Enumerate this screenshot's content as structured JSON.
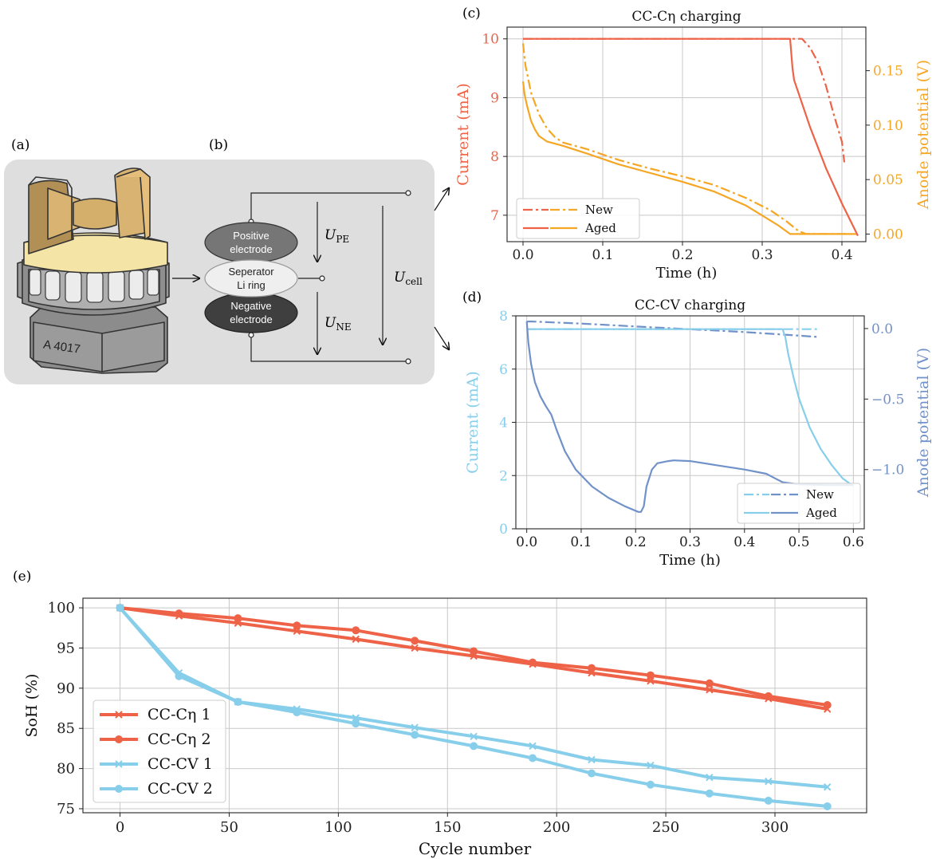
{
  "panels": {
    "a": {
      "label": "(a)",
      "cell_marking": "A 4017"
    },
    "b": {
      "label": "(b)",
      "positive": "Positive\nelectrode",
      "separator": "Seperator\nLi ring",
      "negative": "Negative\nelectrode",
      "u_pe": "U",
      "u_pe_sub": "PE",
      "u_ne": "U",
      "u_ne_sub": "NE",
      "u_cell": "U",
      "u_cell_sub": "cell"
    },
    "c": {
      "label": "(c)"
    },
    "d": {
      "label": "(d)"
    },
    "e": {
      "label": "(e)"
    }
  },
  "colors": {
    "red": "#EE6347",
    "orange": "#F5A623",
    "lightblue": "#87CEEB",
    "steelblue": "#7191C9"
  },
  "chart_data": [
    {
      "id": "c",
      "type": "line",
      "title": "CC-Cη charging",
      "xlabel": "Time (h)",
      "ylabel_left": "Current (mA)",
      "ylabel_right": "Anode potential (V)",
      "xlim": [
        -0.02,
        0.43
      ],
      "ylim_left": [
        6.55,
        10.2
      ],
      "ylim_right": [
        -0.007,
        0.19
      ],
      "xticks": [
        0.0,
        0.1,
        0.2,
        0.3,
        0.4
      ],
      "yticks_left": [
        7,
        8,
        9,
        10
      ],
      "yticks_right": [
        0.0,
        0.05,
        0.1,
        0.15
      ],
      "grid": true,
      "legend": "lower-left",
      "legend_labels": [
        "New",
        "Aged"
      ],
      "series": [
        {
          "name": "New",
          "axis": "left",
          "style": "dashdot",
          "color": "#EE6347",
          "x": [
            0,
            0.35,
            0.36,
            0.37,
            0.38,
            0.39,
            0.4,
            0.403
          ],
          "y": [
            10,
            10,
            9.85,
            9.6,
            9.2,
            8.7,
            8.25,
            7.9
          ]
        },
        {
          "name": "New",
          "axis": "right",
          "style": "dashdot",
          "color": "#F5A623",
          "x": [
            0,
            0.003,
            0.01,
            0.02,
            0.03,
            0.04,
            0.05,
            0.08,
            0.12,
            0.16,
            0.2,
            0.24,
            0.28,
            0.31,
            0.33,
            0.345,
            0.355,
            0.38,
            0.405
          ],
          "y": [
            0.175,
            0.155,
            0.13,
            0.11,
            0.097,
            0.089,
            0.084,
            0.078,
            0.068,
            0.06,
            0.053,
            0.045,
            0.033,
            0.022,
            0.012,
            0.003,
            0.0,
            0.0,
            0.0
          ]
        },
        {
          "name": "Aged",
          "axis": "left",
          "style": "solid",
          "color": "#EE6347",
          "x": [
            0,
            0.335,
            0.338,
            0.34,
            0.36,
            0.38,
            0.4,
            0.42
          ],
          "y": [
            10,
            10,
            9.5,
            9.3,
            8.5,
            7.8,
            7.2,
            6.65
          ]
        },
        {
          "name": "Aged",
          "axis": "right",
          "style": "solid",
          "color": "#F5A623",
          "x": [
            0,
            0.002,
            0.005,
            0.01,
            0.015,
            0.02,
            0.03,
            0.04,
            0.05,
            0.08,
            0.12,
            0.16,
            0.2,
            0.24,
            0.28,
            0.3,
            0.32,
            0.335,
            0.36,
            0.39,
            0.418
          ],
          "y": [
            0.14,
            0.128,
            0.118,
            0.104,
            0.096,
            0.09,
            0.085,
            0.083,
            0.081,
            0.074,
            0.064,
            0.056,
            0.048,
            0.039,
            0.026,
            0.017,
            0.008,
            0.0,
            0.0,
            0.0,
            0.0
          ]
        }
      ]
    },
    {
      "id": "d",
      "type": "line",
      "title": "CC-CV charging",
      "xlabel": "Time (h)",
      "ylabel_left": "Current (mA)",
      "ylabel_right": "Anode potential (V)",
      "xlim": [
        -0.02,
        0.62
      ],
      "ylim_left": [
        0,
        8
      ],
      "ylim_right": [
        -1.42,
        0.09
      ],
      "xticks": [
        0.0,
        0.1,
        0.2,
        0.3,
        0.4,
        0.5,
        0.6
      ],
      "yticks_left": [
        0,
        2,
        4,
        6,
        8
      ],
      "yticks_right": [
        0.0,
        -0.5,
        -1.0
      ],
      "grid": true,
      "legend": "lower-right",
      "legend_labels": [
        "New",
        "Aged"
      ],
      "series": [
        {
          "name": "New",
          "axis": "left",
          "style": "dashdot",
          "color": "#87CEEB",
          "x": [
            0,
            0.535
          ],
          "y": [
            7.5,
            7.5
          ]
        },
        {
          "name": "New",
          "axis": "right",
          "style": "dashdot",
          "color": "#7191C9",
          "x": [
            0,
            0.01,
            0.1,
            0.2,
            0.3,
            0.4,
            0.5,
            0.535
          ],
          "y": [
            0.05,
            0.05,
            0.035,
            0.015,
            -0.005,
            -0.025,
            -0.05,
            -0.06
          ]
        },
        {
          "name": "Aged",
          "axis": "left",
          "style": "solid",
          "color": "#87CEEB",
          "x": [
            0,
            0.47,
            0.475,
            0.48,
            0.49,
            0.5,
            0.52,
            0.54,
            0.56,
            0.58,
            0.6
          ],
          "y": [
            7.5,
            7.5,
            7.2,
            6.6,
            5.7,
            4.9,
            3.8,
            3.0,
            2.4,
            1.9,
            1.6
          ]
        },
        {
          "name": "Aged",
          "axis": "right",
          "style": "solid",
          "color": "#7191C9",
          "x": [
            0,
            0.003,
            0.008,
            0.015,
            0.025,
            0.035,
            0.045,
            0.055,
            0.07,
            0.09,
            0.12,
            0.15,
            0.18,
            0.205,
            0.21,
            0.215,
            0.22,
            0.23,
            0.24,
            0.26,
            0.27,
            0.3,
            0.35,
            0.4,
            0.44,
            0.455,
            0.47,
            0.5,
            0.55,
            0.6
          ],
          "y": [
            0.05,
            -0.1,
            -0.25,
            -0.38,
            -0.48,
            -0.55,
            -0.61,
            -0.72,
            -0.87,
            -1.0,
            -1.12,
            -1.2,
            -1.26,
            -1.3,
            -1.3,
            -1.26,
            -1.12,
            -1.0,
            -0.955,
            -0.94,
            -0.935,
            -0.94,
            -0.97,
            -1.0,
            -1.03,
            -1.06,
            -1.09,
            -1.105,
            -1.11,
            -1.11
          ]
        }
      ]
    },
    {
      "id": "e",
      "type": "line",
      "xlabel": "Cycle number",
      "ylabel": "SoH (%)",
      "xlim": [
        -17,
        342
      ],
      "ylim": [
        74.5,
        101.2
      ],
      "xticks": [
        0,
        50,
        100,
        150,
        200,
        250,
        300
      ],
      "yticks": [
        75,
        80,
        85,
        90,
        95,
        100
      ],
      "grid": true,
      "legend": "lower-left",
      "x": [
        0,
        27,
        54,
        81,
        108,
        135,
        162,
        189,
        216,
        243,
        270,
        297,
        324
      ],
      "series": [
        {
          "name": "CC-Cη 1",
          "marker": "x",
          "color": "#EE6347",
          "values": [
            100,
            99.0,
            98.1,
            97.1,
            96.1,
            95.0,
            94.0,
            93.0,
            91.9,
            90.9,
            89.8,
            88.7,
            87.4
          ]
        },
        {
          "name": "CC-Cη 2",
          "marker": "o",
          "color": "#EE6347",
          "values": [
            100,
            99.3,
            98.7,
            97.8,
            97.2,
            95.9,
            94.6,
            93.2,
            92.5,
            91.6,
            90.6,
            89.0,
            87.9
          ]
        },
        {
          "name": "CC-CV 1",
          "marker": "x",
          "color": "#87CEEB",
          "values": [
            100,
            91.9,
            88.3,
            87.4,
            86.3,
            85.1,
            84.0,
            82.8,
            81.1,
            80.4,
            78.9,
            78.4,
            77.7
          ]
        },
        {
          "name": "CC-CV 2",
          "marker": "o",
          "color": "#87CEEB",
          "values": [
            100,
            91.5,
            88.3,
            87.0,
            85.6,
            84.2,
            82.8,
            81.3,
            79.4,
            78.0,
            76.9,
            76.0,
            75.3
          ]
        }
      ]
    }
  ]
}
